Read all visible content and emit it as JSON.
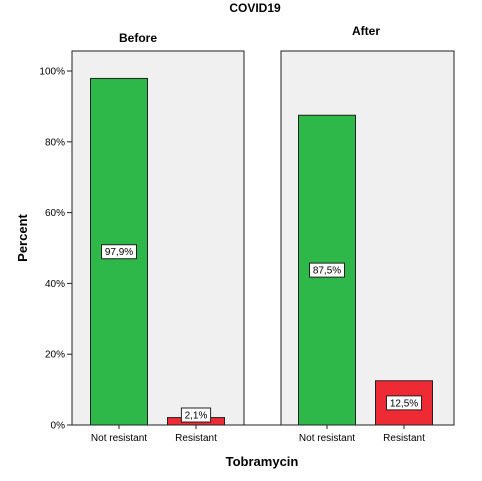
{
  "chart_data": {
    "type": "bar",
    "title": "COVID19",
    "xlabel": "Tobramycin",
    "ylabel": "Percent",
    "ylim": [
      0,
      100
    ],
    "yticks": [
      "0%",
      "20%",
      "40%",
      "60%",
      "80%",
      "100%"
    ],
    "ytick_values": [
      0,
      20,
      40,
      60,
      80,
      100
    ],
    "categories": [
      "Not resistant",
      "Resistant"
    ],
    "colors": {
      "Not resistant": "#2eb84a",
      "Resistant": "#ee2b34"
    },
    "grid": false,
    "panels": [
      {
        "name": "Before",
        "values": [
          97.9,
          2.1
        ],
        "labels": [
          "97,9%",
          "2,1%"
        ]
      },
      {
        "name": "After",
        "values": [
          87.5,
          12.5
        ],
        "labels": [
          "87,5%",
          "12,5%"
        ]
      }
    ]
  }
}
